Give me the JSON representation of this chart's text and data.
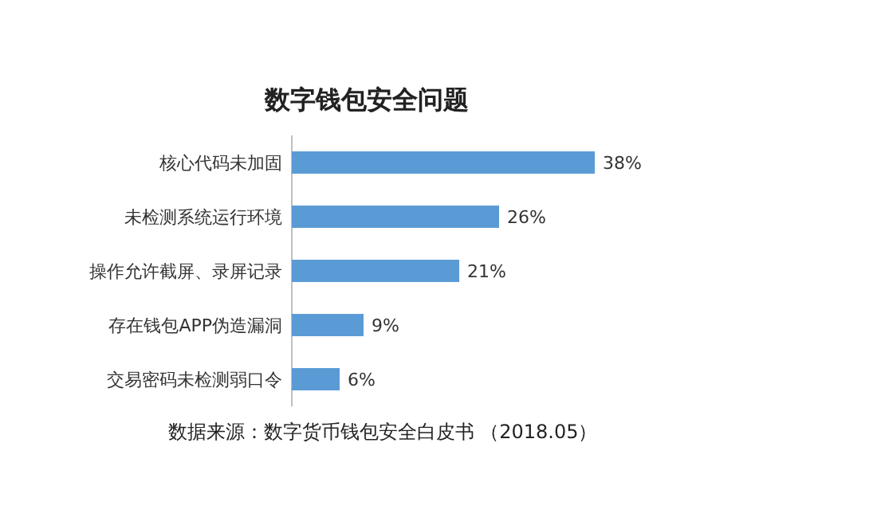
{
  "chart_data": {
    "type": "bar",
    "orientation": "horizontal",
    "title": "数字钱包安全问题",
    "categories": [
      "核心代码未加固",
      "未检测系统运行环境",
      "操作允许截屏、录屏记录",
      "存在钱包APP伪造漏洞",
      "交易密码未检测弱口令"
    ],
    "values": [
      38,
      26,
      21,
      9,
      6
    ],
    "value_labels": [
      "38%",
      "26%",
      "21%",
      "9%",
      "6%"
    ],
    "color": "#5b9bd5",
    "annotations": [
      "数据来源：数字货币钱包安全白皮书 （2018.05）"
    ]
  }
}
